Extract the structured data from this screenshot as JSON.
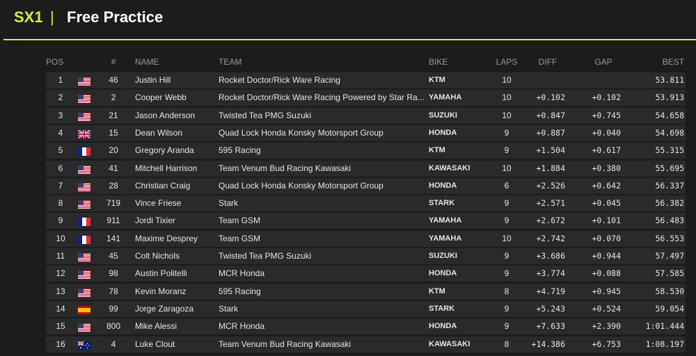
{
  "header": {
    "title": "SX1",
    "separator": "|",
    "subtitle": "Free Practice"
  },
  "table": {
    "columns": [
      "POS",
      "#",
      "NAME",
      "TEAM",
      "BIKE",
      "LAPS",
      "DIFF",
      "GAP",
      "BEST"
    ],
    "rows": [
      [
        "1",
        "46",
        "Justin Hill",
        "Rocket Doctor/Rick Ware Racing",
        "KTM",
        "10",
        null,
        null,
        "53.811"
      ],
      [
        "2",
        "2",
        "Cooper Webb",
        "Rocket Doctor/Rick Ware Racing Powered by Star Ra...",
        "YAMAHA",
        "10",
        "+0.102",
        "+0.102",
        "53.913"
      ],
      [
        "3",
        "21",
        "Jason Anderson",
        "Twisted Tea PMG Suzuki",
        "SUZUKI",
        "10",
        "+0.847",
        "+0.745",
        "54.658"
      ],
      [
        "4",
        "15",
        "Dean Wilson",
        "Quad Lock Honda Konsky Motorsport Group",
        "HONDA",
        "9",
        "+0.887",
        "+0.040",
        "54.698"
      ],
      [
        "5",
        "20",
        "Gregory Aranda",
        "595 Racing",
        "KTM",
        "9",
        "+1.504",
        "+0.617",
        "55.315"
      ],
      [
        "6",
        "41",
        "Mitchell Harrison",
        "Team Venum Bud Racing Kawasaki",
        "KAWASAKI",
        "10",
        "+1.884",
        "+0.380",
        "55.695"
      ],
      [
        "7",
        "28",
        "Christian Craig",
        "Quad Lock Honda Konsky Motorsport Group",
        "HONDA",
        "6",
        "+2.526",
        "+0.642",
        "56.337"
      ],
      [
        "8",
        "719",
        "Vince Friese",
        "Stark",
        "STARK",
        "9",
        "+2.571",
        "+0.045",
        "56.382"
      ],
      [
        "9",
        "911",
        "Jordi Tixier",
        "Team GSM",
        "YAMAHA",
        "9",
        "+2.672",
        "+0.101",
        "56.483"
      ],
      [
        "10",
        "141",
        "Maxime Desprey",
        "Team GSM",
        "YAMAHA",
        "10",
        "+2.742",
        "+0.070",
        "56.553"
      ],
      [
        "11",
        "45",
        "Colt Nichols",
        "Twisted Tea PMG Suzuki",
        "SUZUKI",
        "9",
        "+3.686",
        "+0.944",
        "57.497"
      ],
      [
        "12",
        "98",
        "Austin Politelli",
        "MCR Honda",
        "HONDA",
        "9",
        "+3.774",
        "+0.088",
        "57.585"
      ],
      [
        "13",
        "78",
        "Kevin Moranz",
        "595 Racing",
        "KTM",
        "8",
        "+4.719",
        "+0.945",
        "58.530"
      ],
      [
        "14",
        "99",
        "Jorge Zaragoza",
        "Stark",
        "STARK",
        "9",
        "+5.243",
        "+0.524",
        "59.054"
      ],
      [
        "15",
        "800",
        "Mike Alessi",
        "MCR Honda",
        "HONDA",
        "9",
        "+7.633",
        "+2.390",
        "1:01.444"
      ],
      [
        "16",
        "4",
        "Luke Clout",
        "Team Venum Bud Racing Kawasaki",
        "KAWASAKI",
        "8",
        "+14.386",
        "+6.753",
        "1:08.197"
      ]
    ]
  }
}
